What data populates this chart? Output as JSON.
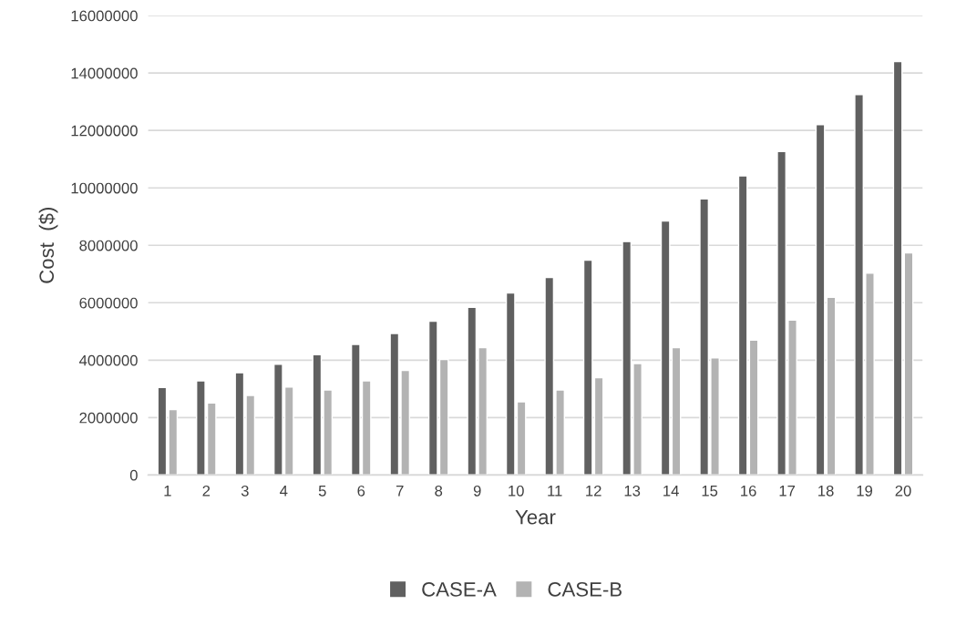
{
  "chart_data": {
    "type": "bar",
    "xlabel": "Year",
    "ylabel": "Cost  ($)",
    "categories": [
      "1",
      "2",
      "3",
      "4",
      "5",
      "6",
      "7",
      "8",
      "9",
      "10",
      "11",
      "12",
      "13",
      "14",
      "15",
      "16",
      "17",
      "18",
      "19",
      "20"
    ],
    "series": [
      {
        "name": "CASE-A",
        "color": "#606060",
        "values": [
          3050000,
          3280000,
          3560000,
          3860000,
          4190000,
          4550000,
          4930000,
          5360000,
          5840000,
          6340000,
          6880000,
          7480000,
          8130000,
          8850000,
          9620000,
          10420000,
          11270000,
          12200000,
          13250000,
          14400000
        ]
      },
      {
        "name": "CASE-B",
        "color": "#b3b3b3",
        "values": [
          2280000,
          2510000,
          2770000,
          3060000,
          2960000,
          3280000,
          3640000,
          4020000,
          4440000,
          2550000,
          2960000,
          3390000,
          3880000,
          4440000,
          4080000,
          4700000,
          5400000,
          6190000,
          7030000,
          7740000
        ]
      }
    ],
    "ylim": [
      0,
      16000000
    ],
    "yticks": [
      0,
      2000000,
      4000000,
      6000000,
      8000000,
      10000000,
      12000000,
      14000000,
      16000000
    ],
    "grid": "y",
    "legend": "bottom"
  }
}
